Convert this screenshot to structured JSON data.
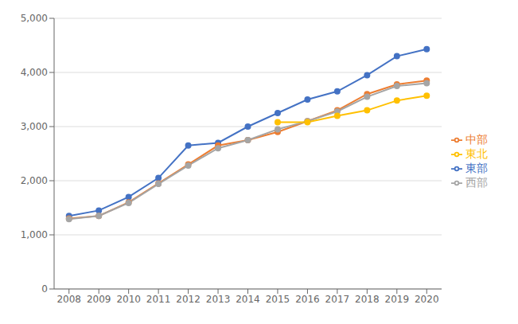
{
  "chart_data": {
    "type": "line",
    "x": [
      2008,
      2009,
      2010,
      2011,
      2012,
      2013,
      2014,
      2015,
      2016,
      2017,
      2018,
      2019,
      2020
    ],
    "series": [
      {
        "name": "東部",
        "color": "#4472C4",
        "marker": "circle",
        "values": [
          1350,
          1450,
          1700,
          2050,
          2650,
          2700,
          3000,
          3250,
          3500,
          3650,
          3950,
          4300,
          4430
        ]
      },
      {
        "name": "中部",
        "color": "#ED7D31",
        "marker": "circle",
        "values": [
          1300,
          1350,
          1600,
          1950,
          2300,
          2650,
          2750,
          2900,
          3100,
          3300,
          3600,
          3780,
          3850
        ]
      },
      {
        "name": "西部",
        "color": "#A5A5A5",
        "marker": "circle",
        "values": [
          1290,
          1350,
          1590,
          1940,
          2280,
          2600,
          2750,
          2950,
          3100,
          3280,
          3550,
          3750,
          3800
        ]
      },
      {
        "name": "東北",
        "color": "#FFC000",
        "marker": "circle",
        "values": [
          null,
          null,
          null,
          null,
          null,
          null,
          null,
          3080,
          3080,
          3200,
          3300,
          3480,
          3570
        ]
      }
    ],
    "xlim": [
      2007.5,
      2020.5
    ],
    "xticks": [
      2008,
      2009,
      2010,
      2011,
      2012,
      2013,
      2014,
      2015,
      2016,
      2017,
      2018,
      2019,
      2020
    ],
    "ylim": [
      0,
      5000
    ],
    "yticks": [
      0,
      {
        "value": 1000,
        "label": "1,000"
      },
      {
        "value": 2000,
        "label": "2,000"
      },
      {
        "value": 3000,
        "label": "3,000"
      },
      {
        "value": 4000,
        "label": "4,000"
      },
      {
        "value": 5000,
        "label": "5,000"
      }
    ],
    "grid": true,
    "legend": "right"
  }
}
